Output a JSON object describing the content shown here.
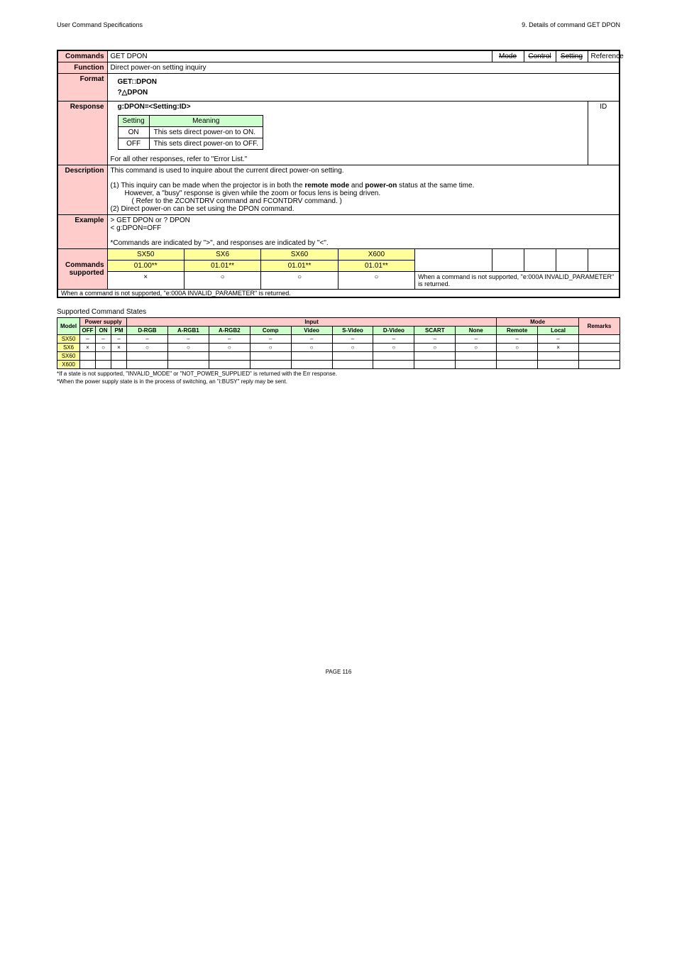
{
  "header": {
    "left": "User Command Specifications",
    "right": "9. Details of command GET DPON"
  },
  "main": {
    "command_label": "Commands",
    "title": "GET DPON",
    "tags": {
      "mode": "Mode",
      "control": "Control",
      "setting": "Setting",
      "reference": "Reference"
    },
    "id_label": "ID",
    "function_label": "Function",
    "function_text": "Direct power-on setting inquiry",
    "format_label": "Format",
    "format_line1": "GET□DPON",
    "format_line2": "?△DPON",
    "response_label": "Response",
    "response_header": "g:DPON=<Setting:ID>",
    "resp_table": {
      "h1": "Setting",
      "h2": "Meaning",
      "r1c1": "ON",
      "r1c2": "This sets direct power-on to ON.",
      "r2c1": "OFF",
      "r2c2": "This sets direct power-on to OFF."
    },
    "response_footer": "For all other responses, refer to \"Error List.\"",
    "description_label": "Description",
    "desc1": "This command is used to inquire about the current direct power-on setting.",
    "desc2a": "(1) This inquiry can be made when the projector is in both the ",
    "desc2b": "remote mode",
    "desc2c": " and ",
    "desc2d": "power-on",
    "desc2e": " status at the same time.",
    "desc3": "However, a \"busy\" response is given while the zoom or focus lens is being driven.",
    "desc4": "( Refer to the ZCONTDRV command and FCONTDRV command. )",
    "desc5": "(2) Direct power-on can be set using the DPON command.",
    "example_label": "Example",
    "ex1": "> GET DPON or ? DPON",
    "ex2": "< g:DPON=OFF",
    "ex3": "*Commands are indicated by \">\", and responses are indicated by \"<\".",
    "cmds_sup_label1": "Commands",
    "cmds_sup_label2": "supported",
    "cs": {
      "h": [
        "SX50",
        "SX6",
        "SX60",
        "X600"
      ],
      "v": [
        "01.00**",
        "01.01**",
        "01.01**",
        "01.01**"
      ],
      "s": [
        "×",
        "○",
        "○",
        "○"
      ]
    },
    "cs_footer": "When a command is not supported, \"e:000A INVALID_PARAMETER\" is returned."
  },
  "states": {
    "title": "Supported Command States",
    "headers": {
      "model": "Model",
      "power": "Power supply",
      "input": "Input",
      "mode": "Mode",
      "remarks": "Remarks",
      "off": "OFF",
      "on": "ON",
      "pm": "PM",
      "drgb": "D-RGB",
      "argb1": "A-RGB1",
      "argb2": "A-RGB2",
      "comp": "Comp",
      "video": "Video",
      "svideo": "S-Video",
      "dvideo": "D-Video",
      "scart": "SCART",
      "none": "None",
      "remote": "Remote",
      "local": "Local"
    },
    "rows": [
      {
        "model": "SX50",
        "cells": [
          "–",
          "–",
          "–",
          "–",
          "–",
          "–",
          "–",
          "–",
          "–",
          "–",
          "–",
          "–",
          "–",
          "–",
          ""
        ]
      },
      {
        "model": "SX6",
        "cells": [
          "×",
          "○",
          "×",
          "○",
          "○",
          "○",
          "○",
          "○",
          "○",
          "○",
          "○",
          "○",
          "○",
          "×",
          ""
        ]
      },
      {
        "model": "SX60",
        "cells": [
          "",
          "",
          "",
          "",
          "",
          "",
          "",
          "",
          "",
          "",
          "",
          "",
          "",
          "",
          ""
        ]
      },
      {
        "model": "X600",
        "cells": [
          "",
          "",
          "",
          "",
          "",
          "",
          "",
          "",
          "",
          "",
          "",
          "",
          "",
          "",
          ""
        ]
      }
    ],
    "foot1": "*If a state is not supported, \"INVALID_MODE\" or \"NOT_POWER_SUPPLIED\" is returned with the Err response.",
    "foot2": "*When the power supply state is in the process of switching, an \"i:BUSY\" reply may be sent."
  },
  "page_number": "PAGE 116"
}
